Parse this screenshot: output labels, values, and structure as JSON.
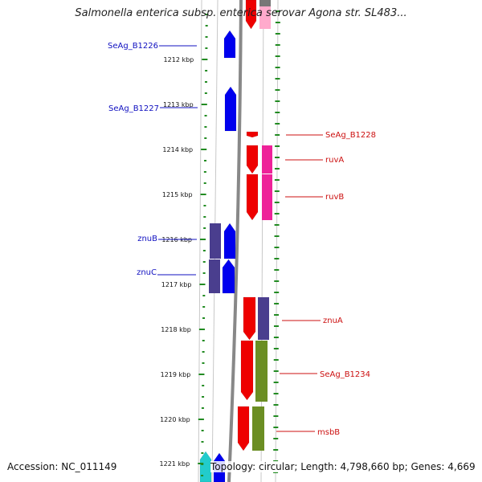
{
  "title": "Salmonella enterica subsp. enterica serovar Agona str. SL483...",
  "footer": {
    "accession": "Accession: NC_011149",
    "topology": "Topology: circular; Length: 4,798,660 bp; Genes: 4,669"
  },
  "colors": {
    "blue": "#0000ee",
    "indigo": "#4a3e8e",
    "red": "#ee0000",
    "pink": "#ee2299",
    "light_pink": "#ffaacc",
    "olive": "#6b8e23",
    "cyan": "#22cccc",
    "ruler_green": "#228B22",
    "backbone": "#888888"
  },
  "map": {
    "kbp_labels": [
      "1212 kbp",
      "1213 kbp",
      "1214 kbp",
      "1215 kbp",
      "1216 kbp",
      "1217 kbp",
      "1218 kbp",
      "1219 kbp",
      "1220 kbp",
      "1221 kbp"
    ],
    "left_genes": [
      "SeAg_B1226",
      "SeAg_B1227",
      "znuB",
      "znuC"
    ],
    "right_genes": [
      "SeAg_B1228",
      "ruvA",
      "ruvB",
      "znuA",
      "SeAg_B1234",
      "msbB"
    ]
  }
}
